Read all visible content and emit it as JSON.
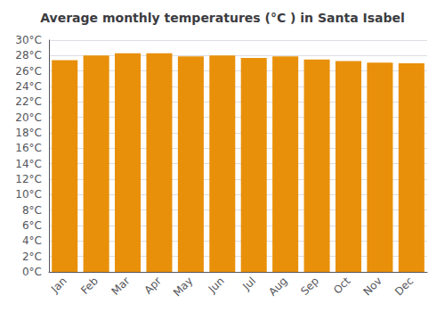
{
  "chart_data": {
    "type": "bar",
    "title": "Average monthly temperatures (°C ) in Santa Isabel",
    "categories": [
      "Jan",
      "Feb",
      "Mar",
      "Apr",
      "May",
      "Jun",
      "Jul",
      "Aug",
      "Sep",
      "Oct",
      "Nov",
      "Dec"
    ],
    "values": [
      27.4,
      28.0,
      28.3,
      28.3,
      27.9,
      28.0,
      27.7,
      27.9,
      27.5,
      27.3,
      27.1,
      27.0
    ],
    "color": "#E8900A",
    "ylim": [
      0,
      30
    ],
    "yticks": [
      {
        "value": 0,
        "label": "0°C"
      },
      {
        "value": 2,
        "label": "2°C"
      },
      {
        "value": 4,
        "label": "4°C"
      },
      {
        "value": 6,
        "label": "6°C"
      },
      {
        "value": 8,
        "label": "8°C"
      },
      {
        "value": 10,
        "label": "10°C"
      },
      {
        "value": 12,
        "label": "12°C"
      },
      {
        "value": 14,
        "label": "14°C"
      },
      {
        "value": 16,
        "label": "16°C"
      },
      {
        "value": 18,
        "label": "18°C"
      },
      {
        "value": 20,
        "label": "20°C"
      },
      {
        "value": 22,
        "label": "22°C"
      },
      {
        "value": 24,
        "label": "24°C"
      },
      {
        "value": 26,
        "label": "26°C"
      },
      {
        "value": 28,
        "label": "28°C"
      },
      {
        "value": 30,
        "label": "30°C"
      }
    ],
    "grid": true
  }
}
